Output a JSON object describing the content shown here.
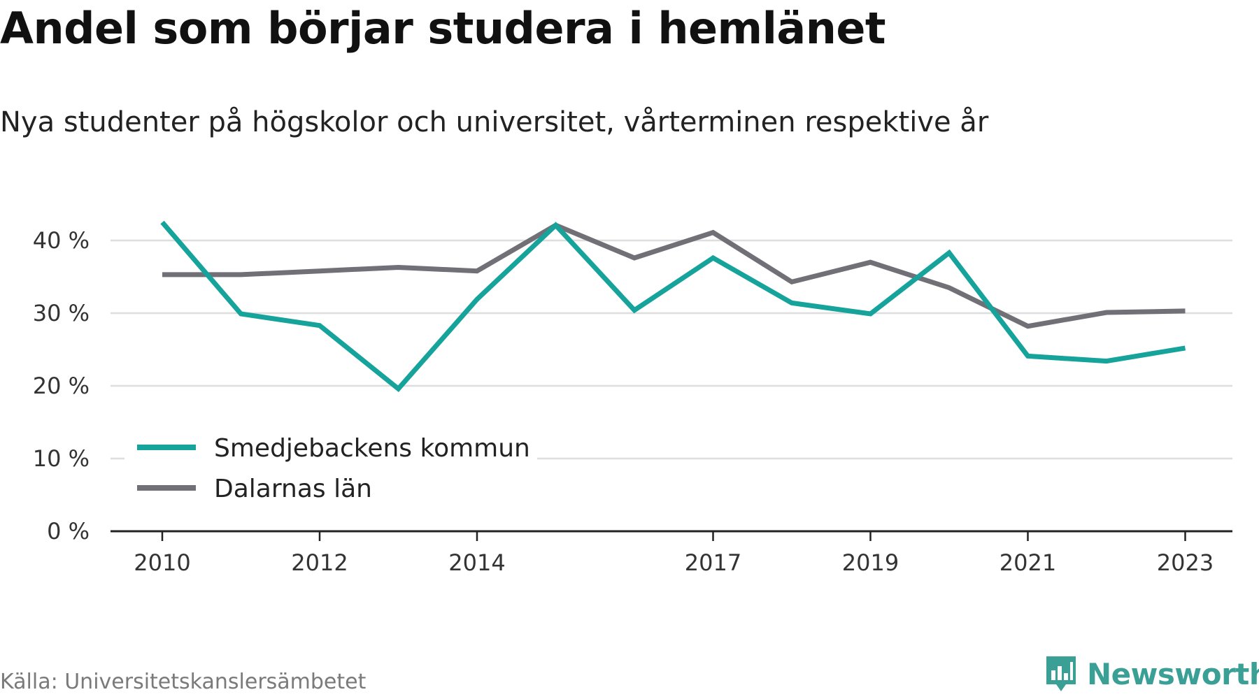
{
  "header": {
    "title": "Andel som börjar studera i hemlänet",
    "subtitle": "Nya studenter på högskolor och universitet, vårterminen respektive år"
  },
  "footer": {
    "source": "Källa: Universitetskanslersämbetet",
    "brand": "Newsworthy",
    "brand_icon": "bar-chart-badge-icon",
    "brand_color": "#3a9f95"
  },
  "chart_data": {
    "type": "line",
    "title": "Andel som börjar studera i hemlänet",
    "subtitle": "Nya studenter på högskolor och universitet, vårterminen respektive år",
    "x": [
      2010,
      2011,
      2012,
      2013,
      2014,
      2015,
      2016,
      2017,
      2018,
      2019,
      2020,
      2021,
      2022,
      2023
    ],
    "x_tick_labels": [
      "2010",
      "2012",
      "2014",
      "2017",
      "2019",
      "2021",
      "2023"
    ],
    "y_tick_labels": [
      "0 %",
      "10 %",
      "20 %",
      "30 %",
      "40 %"
    ],
    "y_ticks": [
      0,
      10,
      20,
      30,
      40
    ],
    "ylim": [
      0,
      45
    ],
    "grid": true,
    "legend_position": "bottom-left",
    "series": [
      {
        "name": "Smedjebackens kommun",
        "color": "#16a39b",
        "values": [
          42.5,
          29.9,
          28.3,
          19.6,
          31.9,
          42.1,
          30.4,
          37.6,
          31.4,
          29.9,
          38.3,
          24.1,
          23.4,
          25.2
        ]
      },
      {
        "name": "Dalarnas län",
        "color": "#727077",
        "values": [
          35.3,
          35.3,
          35.8,
          36.3,
          35.8,
          42.1,
          37.6,
          41.1,
          34.3,
          37.0,
          33.5,
          28.2,
          30.1,
          30.3
        ]
      }
    ]
  }
}
